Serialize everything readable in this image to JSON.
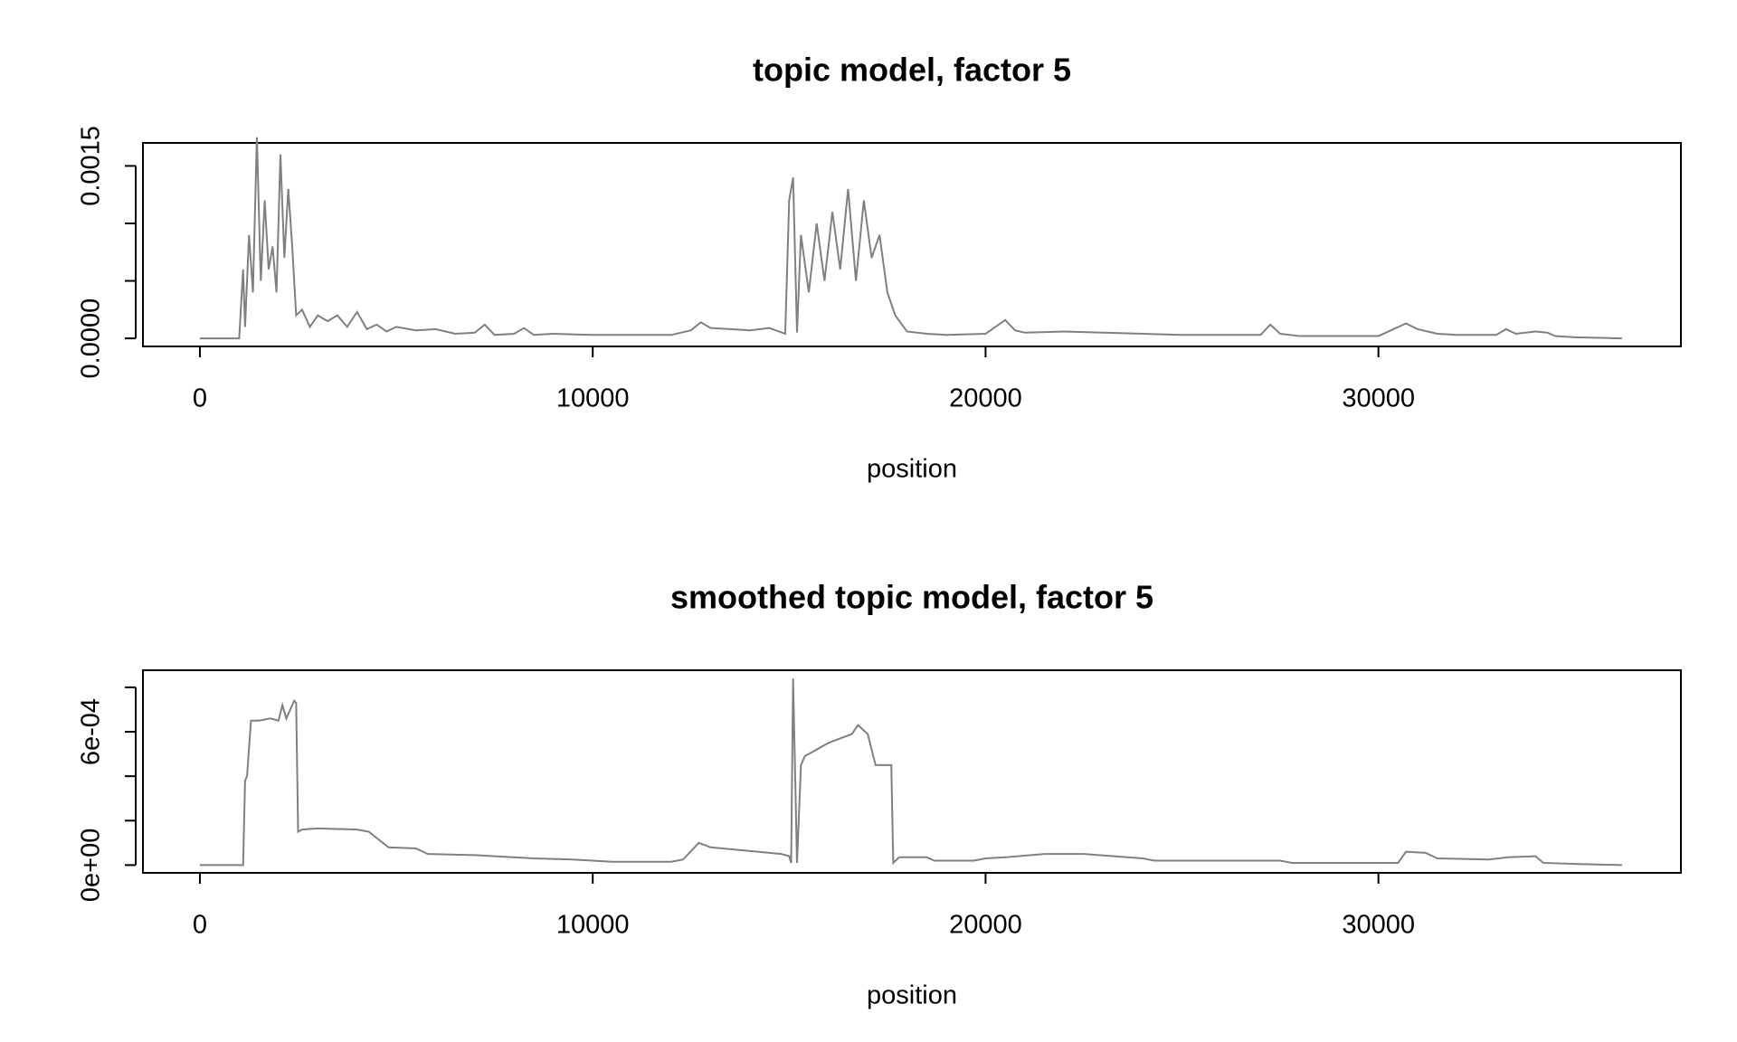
{
  "chart_data": [
    {
      "type": "line",
      "title": "topic model, factor 5",
      "xlabel": "position",
      "x": [
        0,
        500,
        1000,
        1100,
        1150,
        1250,
        1350,
        1450,
        1550,
        1650,
        1750,
        1850,
        1950,
        2050,
        2150,
        2250,
        2350,
        2450,
        2600,
        2800,
        3000,
        3250,
        3500,
        3750,
        4000,
        4250,
        4500,
        4750,
        5000,
        5500,
        6000,
        6500,
        7000,
        7250,
        7500,
        8000,
        8250,
        8500,
        9000,
        10000,
        11000,
        12000,
        12500,
        12750,
        13000,
        13500,
        14000,
        14500,
        14900,
        15000,
        15100,
        15200,
        15300,
        15500,
        15700,
        15900,
        16100,
        16300,
        16500,
        16700,
        16900,
        17100,
        17300,
        17500,
        17700,
        18000,
        18500,
        19000,
        20000,
        20500,
        20750,
        21000,
        22000,
        23000,
        24000,
        25000,
        26000,
        27000,
        27250,
        27500,
        28000,
        29000,
        30000,
        30700,
        31000,
        31500,
        32000,
        33000,
        33250,
        33500,
        34000,
        34300,
        34500,
        35000,
        36200
      ],
      "values": [
        0,
        0,
        0,
        0.0006,
        0.0001,
        0.0009,
        0.0004,
        0.00175,
        0.0005,
        0.0012,
        0.0006,
        0.0008,
        0.0004,
        0.0016,
        0.0007,
        0.0013,
        0.0008,
        0.0002,
        0.00025,
        0.0001,
        0.0002,
        0.00015,
        0.0002,
        0.0001,
        0.00023,
        8e-05,
        0.00012,
        6e-05,
        0.0001,
        7e-05,
        8e-05,
        4e-05,
        5e-05,
        0.00012,
        3e-05,
        4e-05,
        9e-05,
        3e-05,
        4e-05,
        3e-05,
        3e-05,
        3e-05,
        7e-05,
        0.00014,
        9e-05,
        8e-05,
        7e-05,
        9e-05,
        4e-05,
        0.0012,
        0.0014,
        5e-05,
        0.0009,
        0.0004,
        0.001,
        0.0005,
        0.0011,
        0.0006,
        0.0013,
        0.0005,
        0.0012,
        0.0007,
        0.0009,
        0.0004,
        0.0002,
        6e-05,
        4e-05,
        3e-05,
        4e-05,
        0.00016,
        7e-05,
        5e-05,
        6e-05,
        5e-05,
        4e-05,
        3e-05,
        3e-05,
        3e-05,
        0.00012,
        4e-05,
        2e-05,
        2e-05,
        2e-05,
        0.00013,
        8e-05,
        4e-05,
        3e-05,
        3e-05,
        8e-05,
        4e-05,
        6e-05,
        5e-05,
        2e-05,
        1e-05,
        0
      ],
      "color": "#808080",
      "xlim": [
        -1450,
        37700
      ],
      "xticks": [
        0,
        10000,
        20000,
        30000
      ],
      "ylim": [
        -7e-05,
        0.0017
      ],
      "yticks": [
        {
          "value": 0,
          "label": "0.0000"
        },
        {
          "value": 0.0005,
          "label": null
        },
        {
          "value": 0.001,
          "label": null
        },
        {
          "value": 0.0015,
          "label": "0.0015"
        }
      ]
    },
    {
      "type": "line",
      "title": "smoothed topic model, factor 5",
      "xlabel": "position",
      "x": [
        0,
        1100,
        1150,
        1200,
        1300,
        1500,
        1800,
        2000,
        2100,
        2200,
        2400,
        2450,
        2500,
        2600,
        3000,
        4000,
        4300,
        4800,
        5500,
        5800,
        7000,
        7500,
        8500,
        9500,
        10500,
        12000,
        12300,
        12700,
        13000,
        14800,
        15000,
        15050,
        15100,
        15200,
        15300,
        15400,
        16000,
        16600,
        16750,
        17000,
        17200,
        17600,
        17650,
        17800,
        18500,
        18700,
        19700,
        20000,
        20500,
        21500,
        22500,
        24000,
        24300,
        27500,
        27800,
        30500,
        30700,
        31200,
        31500,
        32800,
        33300,
        34000,
        34200,
        35000,
        36200
      ],
      "values": [
        0,
        0,
        0.00038,
        0.0004,
        0.00065,
        0.00065,
        0.00066,
        0.00065,
        0.00072,
        0.00066,
        0.00074,
        0.00073,
        0.00015,
        0.00016,
        0.000165,
        0.00016,
        0.00015,
        8e-05,
        7.5e-05,
        5e-05,
        4.5e-05,
        4e-05,
        3e-05,
        2.5e-05,
        1.5e-05,
        1.5e-05,
        2.5e-05,
        0.0001,
        8e-05,
        5e-05,
        4e-05,
        1e-05,
        0.00084,
        1e-05,
        0.00045,
        0.00049,
        0.00055,
        0.00059,
        0.00063,
        0.00059,
        0.00045,
        0.00045,
        1e-05,
        3.5e-05,
        3.5e-05,
        2e-05,
        2e-05,
        3e-05,
        3.5e-05,
        5e-05,
        5e-05,
        3e-05,
        2e-05,
        2e-05,
        1e-05,
        1e-05,
        6e-05,
        5.5e-05,
        3e-05,
        2.5e-05,
        3.5e-05,
        4e-05,
        1e-05,
        5e-06,
        0
      ],
      "color": "#808080",
      "xlim": [
        -1450,
        37700
      ],
      "xticks": [
        0,
        10000,
        20000,
        30000
      ],
      "ylim": [
        -3.5e-05,
        0.000877
      ],
      "yticks": [
        {
          "value": 0,
          "label": "0e+00"
        },
        {
          "value": 0.0002,
          "label": null
        },
        {
          "value": 0.0004,
          "label": null
        },
        {
          "value": 0.0006,
          "label": "6e-04"
        },
        {
          "value": 0.0008,
          "label": null
        }
      ]
    }
  ]
}
